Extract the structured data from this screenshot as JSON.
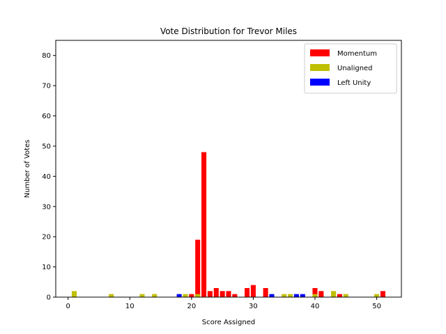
{
  "chart_data": {
    "type": "bar",
    "title": "Vote Distribution for Trevor Miles",
    "xlabel": "Score Assigned",
    "ylabel": "Number of Votes",
    "xlim": [
      -2,
      54
    ],
    "ylim": [
      0,
      85
    ],
    "xticks": [
      0,
      10,
      20,
      30,
      40,
      50
    ],
    "yticks": [
      0,
      10,
      20,
      30,
      40,
      50,
      60,
      70,
      80
    ],
    "grid": false,
    "legend_position": "top-right",
    "series": [
      {
        "name": "Momentum",
        "color": "#ff0000",
        "points": [
          {
            "x": 20,
            "y": 1
          },
          {
            "x": 21,
            "y": 19
          },
          {
            "x": 22,
            "y": 48
          },
          {
            "x": 23,
            "y": 2
          },
          {
            "x": 24,
            "y": 3
          },
          {
            "x": 25,
            "y": 2
          },
          {
            "x": 26,
            "y": 2
          },
          {
            "x": 27,
            "y": 1
          },
          {
            "x": 29,
            "y": 3
          },
          {
            "x": 30,
            "y": 4
          },
          {
            "x": 32,
            "y": 3
          },
          {
            "x": 40,
            "y": 3
          },
          {
            "x": 41,
            "y": 2
          },
          {
            "x": 44,
            "y": 1
          },
          {
            "x": 51,
            "y": 2
          }
        ]
      },
      {
        "name": "Unaligned",
        "color": "#bfbf00",
        "points": [
          {
            "x": 1,
            "y": 2
          },
          {
            "x": 7,
            "y": 1
          },
          {
            "x": 12,
            "y": 1
          },
          {
            "x": 14,
            "y": 1
          },
          {
            "x": 19,
            "y": 1
          },
          {
            "x": 21,
            "y": 1
          },
          {
            "x": 35,
            "y": 1
          },
          {
            "x": 36,
            "y": 1
          },
          {
            "x": 40,
            "y": 1
          },
          {
            "x": 43,
            "y": 2
          },
          {
            "x": 45,
            "y": 1
          },
          {
            "x": 50,
            "y": 1
          }
        ]
      },
      {
        "name": "Left Unity",
        "color": "#0000ff",
        "points": [
          {
            "x": 18,
            "y": 1
          },
          {
            "x": 33,
            "y": 1
          },
          {
            "x": 37,
            "y": 1
          },
          {
            "x": 38,
            "y": 1
          }
        ]
      }
    ]
  }
}
